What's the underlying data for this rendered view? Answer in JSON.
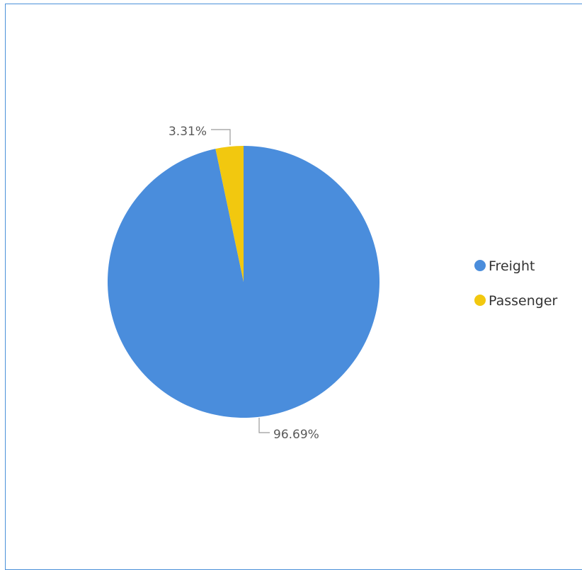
{
  "chart_data": {
    "type": "pie",
    "categories": [
      "Freight",
      "Passenger"
    ],
    "values": [
      96.69,
      3.31
    ],
    "data_labels": [
      "96.69%",
      "3.31%"
    ],
    "colors": [
      "#4a8ddc",
      "#f2c80f"
    ],
    "legend": {
      "position": "right",
      "entries": [
        "Freight",
        "Passenger"
      ]
    },
    "title": ""
  }
}
